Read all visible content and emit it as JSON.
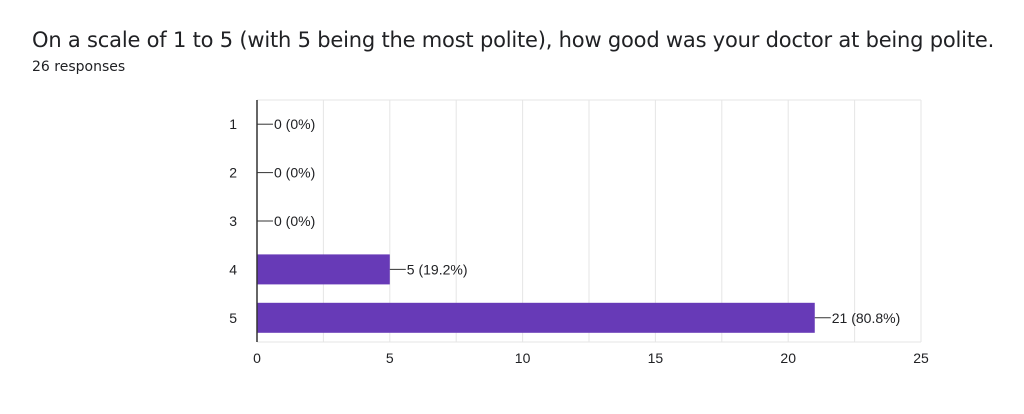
{
  "question": {
    "title": "On a scale of 1 to 5 (with 5 being the most polite), how good was your doctor at being polite.",
    "responses": "26 responses"
  },
  "colors": {
    "bar": "#673ab7",
    "grid": "#e5e5e5",
    "axis": "#333333"
  },
  "chart_data": {
    "type": "bar",
    "orientation": "horizontal",
    "categories": [
      "1",
      "2",
      "3",
      "4",
      "5"
    ],
    "values": [
      0,
      0,
      0,
      5,
      21
    ],
    "data_labels": [
      "0 (0%)",
      "0 (0%)",
      "0 (0%)",
      "5 (19.2%)",
      "21 (80.8%)"
    ],
    "xlim": [
      0,
      25
    ],
    "xticks": [
      0,
      5,
      10,
      15,
      20,
      25
    ],
    "grid": true
  }
}
